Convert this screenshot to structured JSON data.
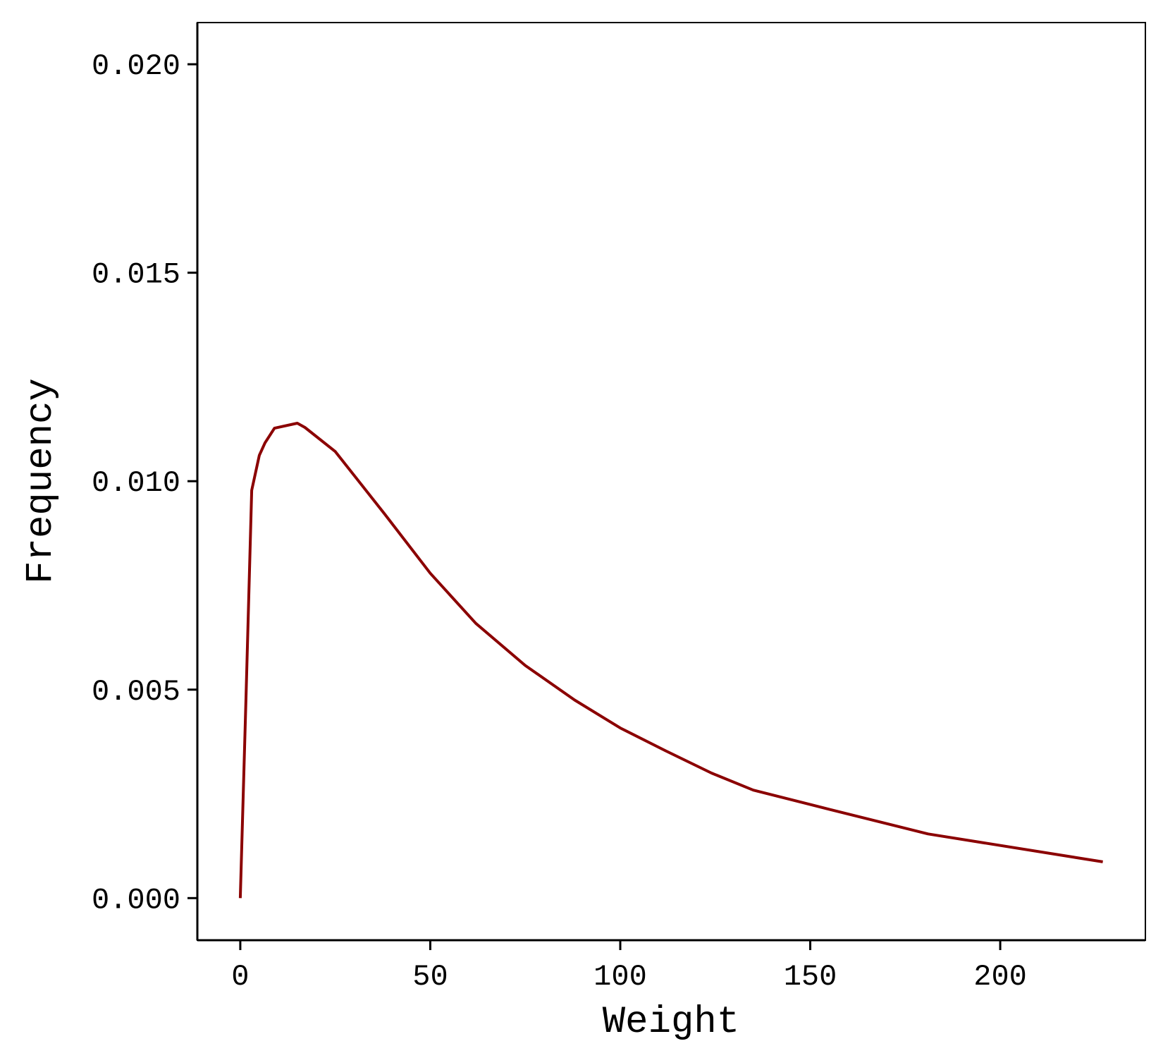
{
  "chart_data": {
    "type": "line",
    "xlabel": "Weight",
    "ylabel": "Frequency",
    "xlim": [
      -11.3,
      238.2
    ],
    "ylim": [
      -0.00101,
      0.021
    ],
    "x_ticks": [
      0,
      50,
      100,
      150,
      200
    ],
    "x_tick_labels": [
      "0",
      "50",
      "100",
      "150",
      "200"
    ],
    "y_ticks": [
      0.0,
      0.005,
      0.01,
      0.015,
      0.02
    ],
    "y_tick_labels": [
      "0.000",
      "0.005",
      "0.010",
      "0.015",
      "0.020"
    ],
    "grid": false,
    "line_color": "#8b0000",
    "series": [
      {
        "x": [
          0,
          1.5,
          3,
          5,
          6.5,
          9,
          15,
          17,
          25,
          38,
          50,
          62,
          75,
          88,
          100,
          112,
          124,
          135,
          155,
          181,
          227
        ],
        "y": [
          0.0,
          0.0048,
          0.00978,
          0.01062,
          0.01092,
          0.01127,
          0.01139,
          0.01129,
          0.01071,
          0.00921,
          0.00779,
          0.00659,
          0.00558,
          0.00475,
          0.00408,
          0.00353,
          0.003,
          0.00259,
          0.00213,
          0.00154,
          0.00087
        ]
      }
    ]
  }
}
